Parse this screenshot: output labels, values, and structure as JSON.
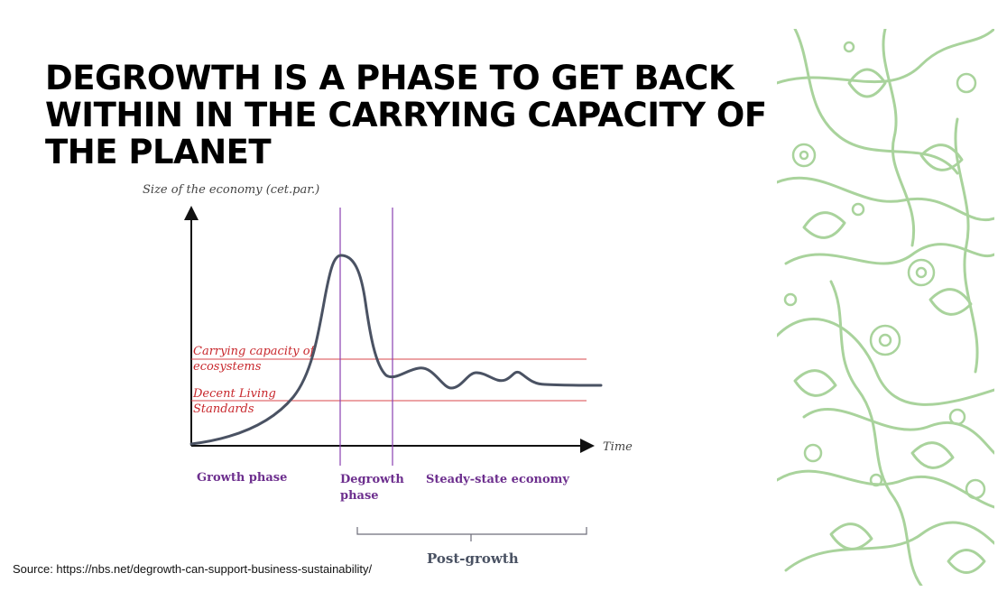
{
  "slide": {
    "title_lines": [
      "DEGROWTH IS A PHASE TO GET BACK",
      "WITHIN IN THE CARRYING CAPACITY OF",
      "THE PLANET"
    ],
    "source": "Source: https://nbs.net/degrowth-can-support-business-sustainability/"
  },
  "diagram": {
    "y_axis_label": "Size of the economy (cet.par.)",
    "x_axis_label": "Time",
    "lines": {
      "carrying_capacity": [
        "Carrying capacity of",
        "ecosystems"
      ],
      "decent_living": [
        "Decent Living",
        "Standards"
      ]
    },
    "phases": {
      "growth": "Growth phase",
      "degrowth": [
        "Degrowth",
        "phase"
      ],
      "steady_state": "Steady-state economy",
      "post_growth": "Post-growth"
    },
    "colors": {
      "curve": "#4a5263",
      "threshold_lines": "#d9474b",
      "phase_lines": "#8a3fb0",
      "phase_labels": "#6d2f8e",
      "floral": "#a9d39c"
    }
  }
}
